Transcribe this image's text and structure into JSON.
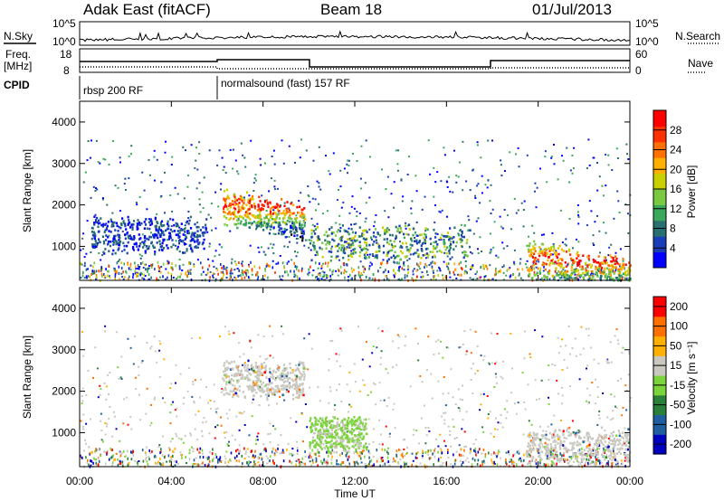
{
  "header": {
    "station": "Adak East (fitACF)",
    "beam": "Beam 18",
    "date": "01/Jul/2013"
  },
  "noise_panel": {
    "left_label": "N.Sky",
    "right_label": "N.Search",
    "left_ticks": [
      "10^5",
      "10^0"
    ],
    "right_ticks": [
      "10^5",
      "10^0"
    ]
  },
  "freq_panel": {
    "left_label_1": "Freq.",
    "left_label_2": "[MHz]",
    "right_label": "Nave",
    "left_ticks": [
      "18",
      "8"
    ],
    "right_ticks": [
      "60",
      "0"
    ]
  },
  "cpid_panel": {
    "label": "CPID",
    "segments": [
      {
        "name": "rbsp 200 RF",
        "start": "00:00",
        "end": "06:00"
      },
      {
        "name": "normalsound (fast) 157 RF",
        "start": "06:00",
        "end": "24:00"
      }
    ]
  },
  "time_axis": {
    "label": "Time UT",
    "ticks": [
      "00:00",
      "04:00",
      "08:00",
      "12:00",
      "16:00",
      "20:00",
      "00:00"
    ]
  },
  "chart_data": [
    {
      "type": "heatmap",
      "title": "",
      "xlabel": "Time UT",
      "ylabel": "Slant Range [km]",
      "xlim": [
        0,
        24
      ],
      "ylim": [
        180,
        4500
      ],
      "y_ticks": [
        "1000",
        "2000",
        "3000",
        "4000"
      ],
      "colorbar": {
        "label": "Power [dB]",
        "ticks": [
          "4",
          "8",
          "12",
          "16",
          "20",
          "24",
          "28"
        ],
        "colors": [
          "#0000ff",
          "#1a3db8",
          "#2a6f6f",
          "#3aa85a",
          "#7ac943",
          "#c8d000",
          "#ffb000",
          "#ff7000",
          "#ff3000",
          "#ff0000"
        ]
      },
      "features": [
        {
          "t_start": 6.2,
          "t_end": 9.8,
          "range_km": 2000,
          "level": "high"
        },
        {
          "t_start": 19.5,
          "t_end": 24.0,
          "range_km": 700,
          "level": "high"
        },
        {
          "t_start": 0.5,
          "t_end": 5.5,
          "range_km": 1300,
          "level": "low"
        },
        {
          "t_start": 10.0,
          "t_end": 17.0,
          "range_km": 1100,
          "level": "medium"
        }
      ]
    },
    {
      "type": "heatmap",
      "title": "",
      "xlabel": "Time UT",
      "ylabel": "Slant Range [km]",
      "xlim": [
        0,
        24
      ],
      "ylim": [
        180,
        4500
      ],
      "y_ticks": [
        "1000",
        "2000",
        "3000",
        "4000"
      ],
      "colorbar": {
        "label": "Velocity [m s⁻¹]",
        "ticks": [
          "200",
          "100",
          "50",
          "15",
          "-15",
          "-50",
          "-100",
          "-200"
        ],
        "colors": [
          "#0000c0",
          "#1f5fa0",
          "#2a7f3a",
          "#7ad43a",
          "#c8c8c0",
          "#ffb000",
          "#ff7000",
          "#ff0000"
        ]
      },
      "features": [
        {
          "t_start": 6.2,
          "t_end": 9.8,
          "range_km": 2300,
          "level": "ground-scatter"
        },
        {
          "t_start": 10.0,
          "t_end": 12.5,
          "range_km": 1000,
          "level": "low-velocity"
        },
        {
          "t_start": 19.5,
          "t_end": 24.0,
          "range_km": 700,
          "level": "ground-scatter"
        }
      ]
    }
  ]
}
